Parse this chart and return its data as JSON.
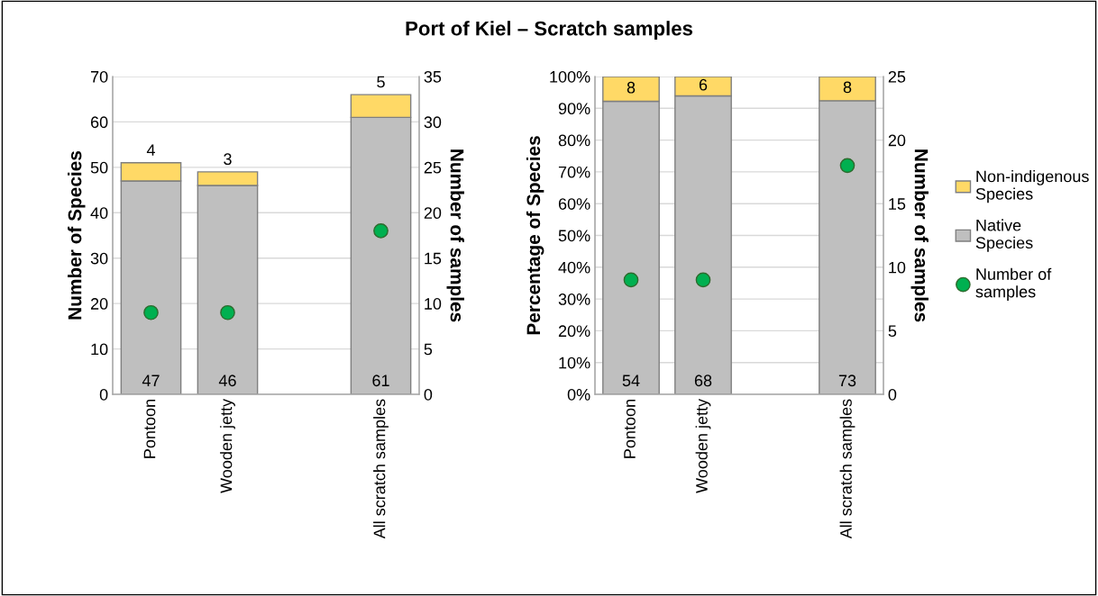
{
  "chart_data": [
    {
      "type": "bar",
      "title": "Port of Kiel – Scratch samples",
      "stacked": true,
      "categories": [
        "Pontoon",
        "Wooden jetty",
        null,
        "All scratch samples"
      ],
      "ylabel": "Number of Species",
      "y2label": "Number of samples",
      "ylim": [
        0,
        70
      ],
      "yticks": [
        0,
        10,
        20,
        30,
        40,
        50,
        60,
        70
      ],
      "y2lim": [
        0,
        35
      ],
      "y2ticks": [
        0,
        5,
        10,
        15,
        20,
        25,
        30,
        35
      ],
      "grid": "y",
      "legend": false,
      "series": [
        {
          "color": "#bfbfbf",
          "values": [
            47,
            46,
            null,
            61
          ],
          "value_labels": [
            "47",
            "46",
            null,
            "61"
          ]
        },
        {
          "color": "#ffd966",
          "values": [
            4,
            3,
            null,
            5
          ],
          "value_labels": [
            "4",
            "3",
            null,
            "5"
          ]
        },
        {
          "type": "scatter",
          "axis": "y2",
          "marker": "circle",
          "color": "#00b050",
          "values": [
            9,
            9,
            null,
            18
          ]
        }
      ]
    },
    {
      "type": "bar",
      "stacked": true,
      "categories": [
        "Pontoon",
        "Wooden jetty",
        null,
        "All scratch samples"
      ],
      "ylabel": "Percentage of Species",
      "y2label": "Number of samples",
      "ylim": [
        0,
        100
      ],
      "yticks": [
        {
          "value": 0,
          "label": "0%"
        },
        {
          "value": 10,
          "label": "10%"
        },
        {
          "value": 20,
          "label": "20%"
        },
        {
          "value": 30,
          "label": "30%"
        },
        {
          "value": 40,
          "label": "40%"
        },
        {
          "value": 50,
          "label": "50%"
        },
        {
          "value": 60,
          "label": "60%"
        },
        {
          "value": 70,
          "label": "70%"
        },
        {
          "value": 80,
          "label": "80%"
        },
        {
          "value": 90,
          "label": "90%"
        },
        {
          "value": 100,
          "label": "100%"
        }
      ],
      "y2lim": [
        0,
        25
      ],
      "y2ticks": [
        0,
        5,
        10,
        15,
        20,
        25
      ],
      "grid": "y",
      "legend": "right",
      "annotations": [
        "54",
        "68",
        "73",
        "8",
        "6",
        "8"
      ],
      "series": [
        {
          "name": "Native Species",
          "color": "#bfbfbf",
          "values": [
            92.2,
            93.9,
            null,
            92.4
          ]
        },
        {
          "name": "Non-indigenous Species",
          "color": "#ffd966",
          "values": [
            7.8,
            6.1,
            null,
            7.6
          ]
        },
        {
          "name": "Number of samples",
          "type": "scatter",
          "axis": "y2",
          "marker": "circle",
          "color": "#00b050",
          "values": [
            9,
            9,
            null,
            18
          ]
        }
      ]
    }
  ]
}
